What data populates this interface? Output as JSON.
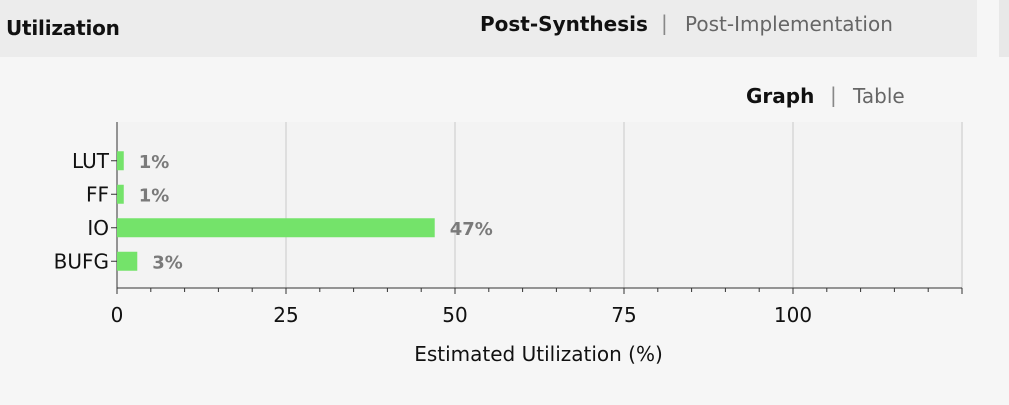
{
  "panel": {
    "title": "Utilization",
    "tabs": [
      {
        "label": "Post-Synthesis",
        "active": true
      },
      {
        "label": "Post-Implementation",
        "active": false
      }
    ],
    "tab_separator": "|",
    "view_tabs": [
      {
        "label": "Graph",
        "active": true
      },
      {
        "label": "Table",
        "active": false
      }
    ],
    "view_separator": "|"
  },
  "colors": {
    "bar": "#74e36a",
    "data_label": "#7a7a7a",
    "grid": "#c8c8c8",
    "axis": "#333333"
  },
  "chart_data": {
    "type": "bar",
    "orientation": "horizontal",
    "categories": [
      "LUT",
      "FF",
      "IO",
      "BUFG"
    ],
    "values": [
      1,
      1,
      47,
      3
    ],
    "value_labels": [
      "1%",
      "1%",
      "47%",
      "3%"
    ],
    "xlabel": "Estimated Utilization (%)",
    "ylabel": "",
    "xlim": [
      0,
      125
    ],
    "xticks": [
      0,
      25,
      50,
      75,
      100
    ],
    "xtick_labels": [
      "0",
      "25",
      "50",
      "75",
      "100"
    ],
    "grid": true,
    "legend": false
  }
}
